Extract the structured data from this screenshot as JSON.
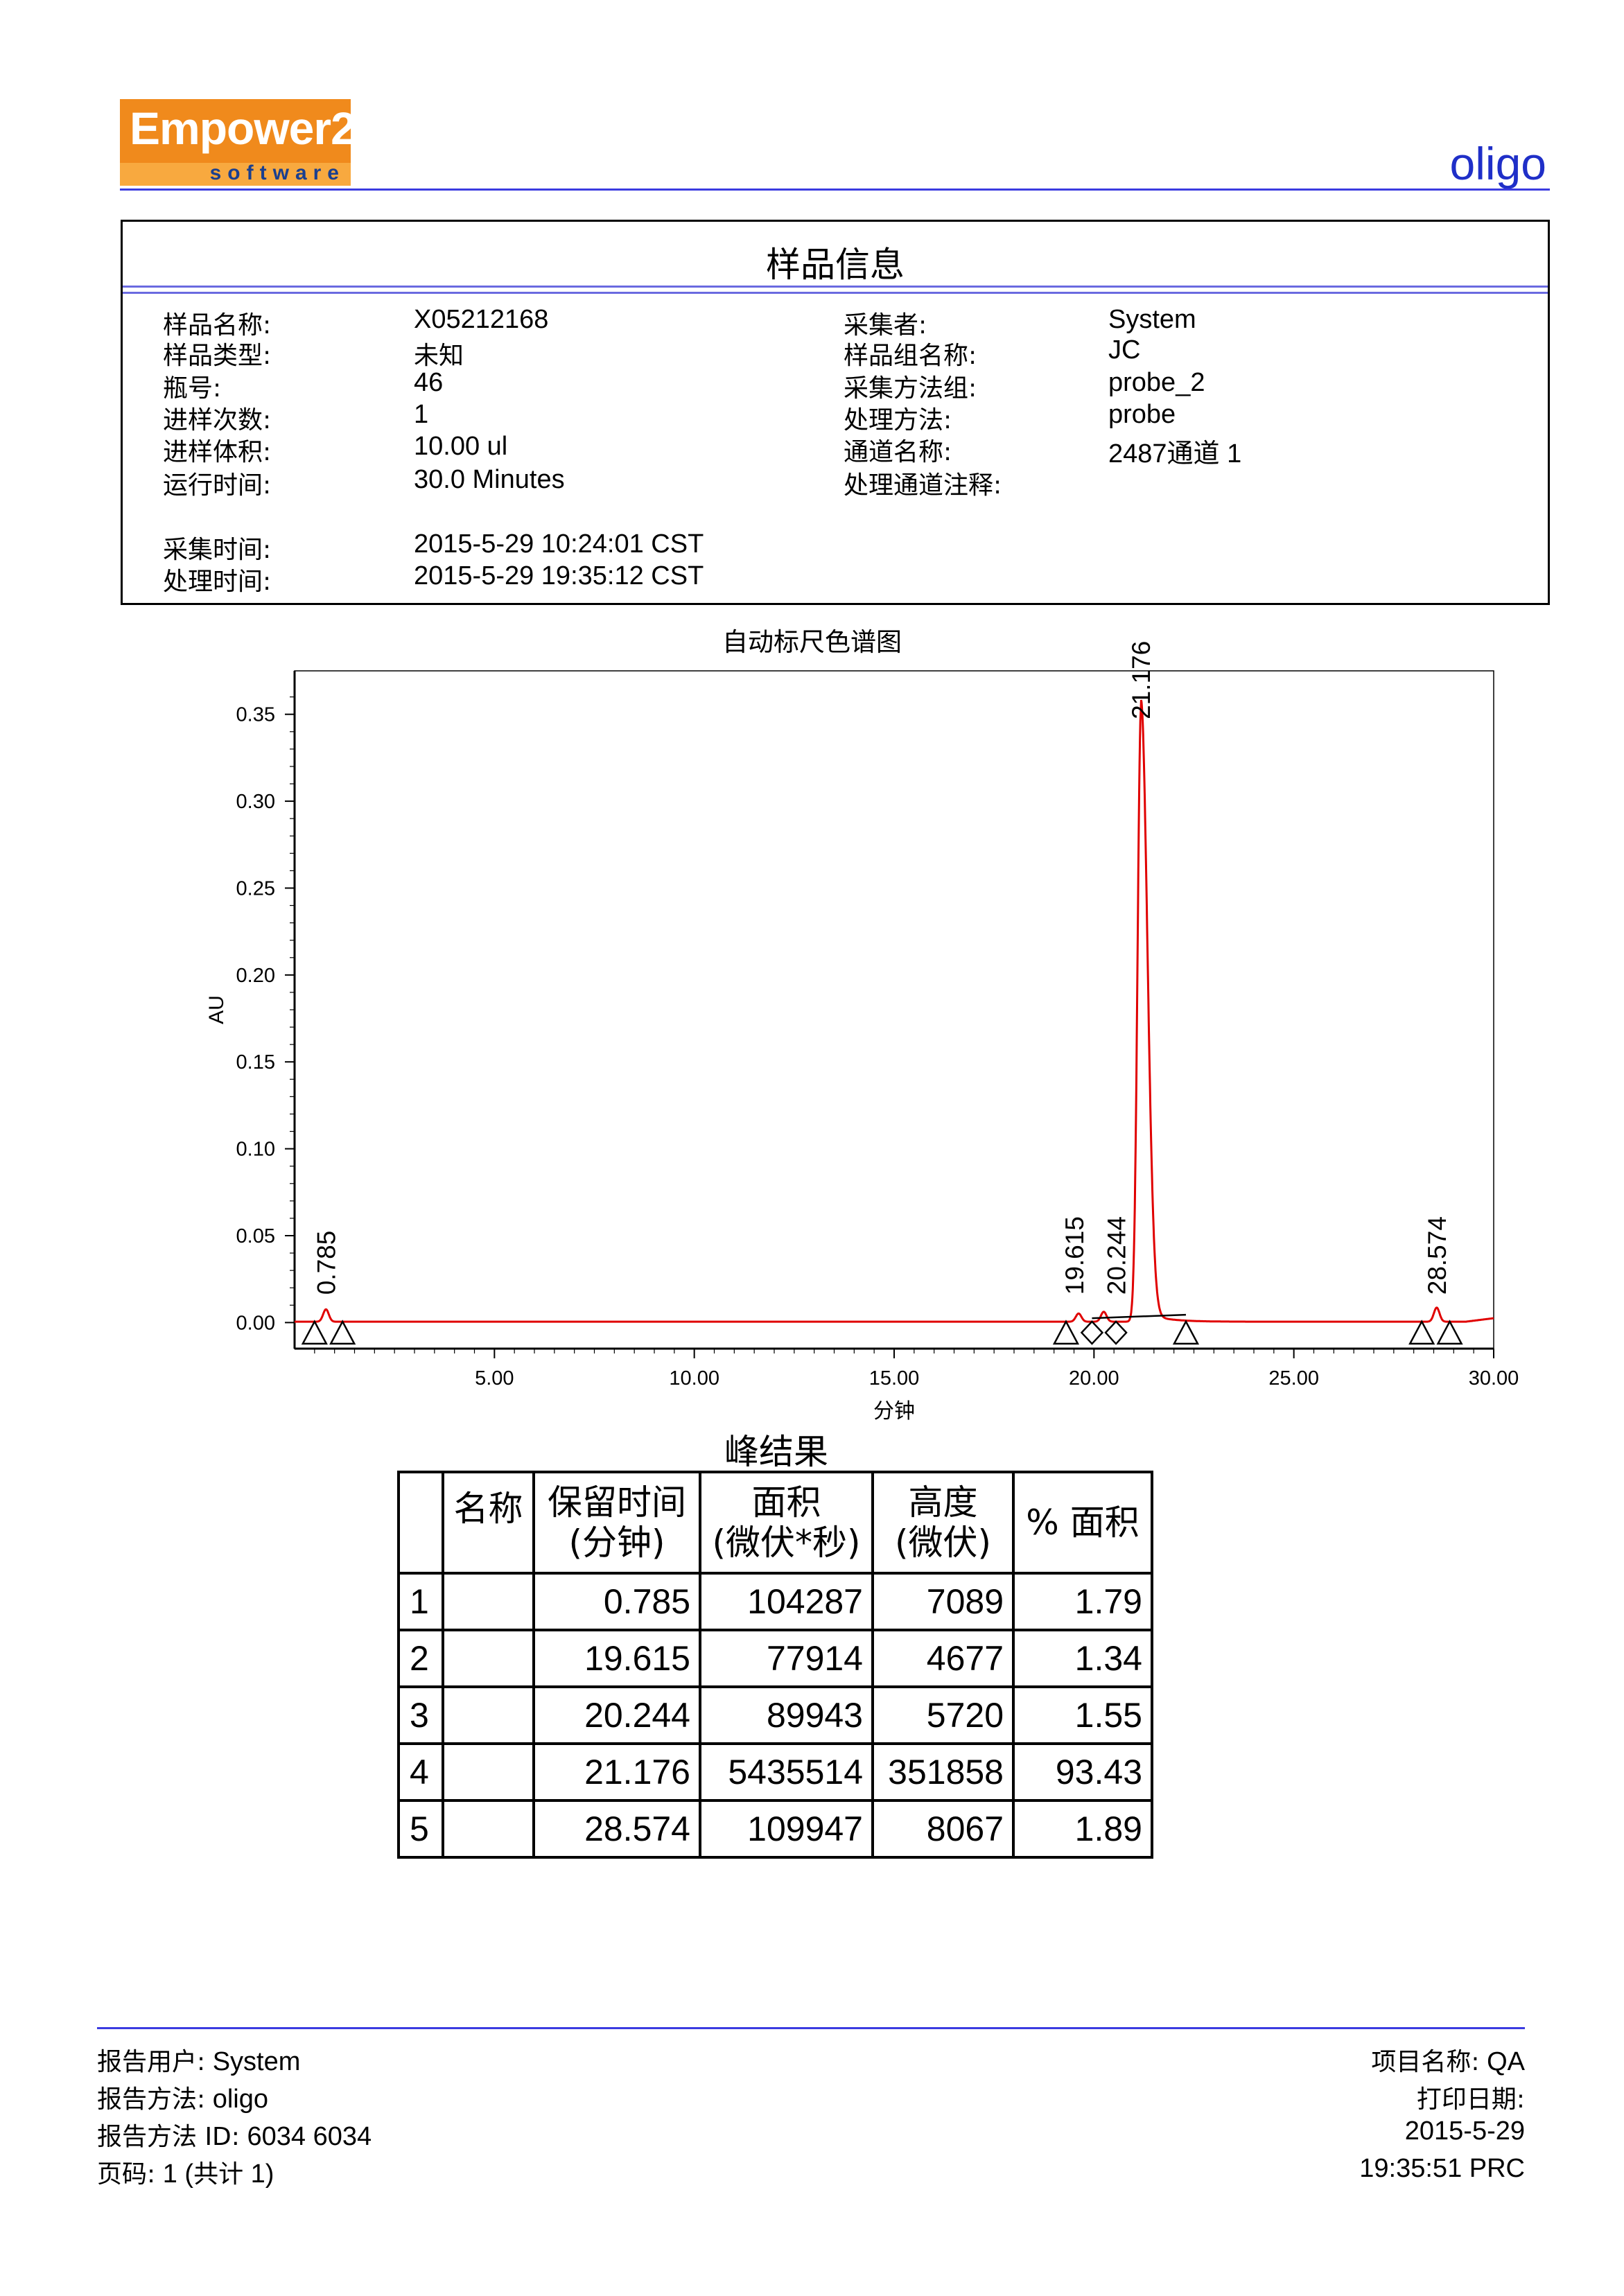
{
  "header": {
    "logo_text": "Empower2",
    "logo_sub": "software",
    "report_name": "oligo"
  },
  "sample_info": {
    "title": "样品信息",
    "left": [
      {
        "label": "样品名称:",
        "value": "X05212168"
      },
      {
        "label": "样品类型:",
        "value": "未知"
      },
      {
        "label": "瓶号:",
        "value": "46"
      },
      {
        "label": "进样次数:",
        "value": "1"
      },
      {
        "label": "进样体积:",
        "value": "10.00 ul"
      },
      {
        "label": "运行时间:",
        "value": "30.0 Minutes"
      },
      {
        "label": "采集时间:",
        "value": "2015-5-29 10:24:01 CST"
      },
      {
        "label": "处理时间:",
        "value": "2015-5-29 19:35:12 CST"
      }
    ],
    "right": [
      {
        "label": "采集者:",
        "value": "System"
      },
      {
        "label": "样品组名称:",
        "value": "JC"
      },
      {
        "label": "采集方法组:",
        "value": "probe_2"
      },
      {
        "label": "处理方法:",
        "value": "probe"
      },
      {
        "label": "通道名称:",
        "value": "2487通道 1"
      },
      {
        "label": "处理通道注释:",
        "value": ""
      }
    ]
  },
  "chart_data": {
    "type": "line",
    "title": "自动标尺色谱图",
    "xlabel": "分钟",
    "ylabel": "AU",
    "xlim": [
      0.0,
      30.0
    ],
    "ylim": [
      -0.015,
      0.375
    ],
    "xticks": [
      "5.00",
      "10.00",
      "15.00",
      "20.00",
      "25.00",
      "30.00"
    ],
    "yticks": [
      "0.00",
      "0.05",
      "0.10",
      "0.15",
      "0.20",
      "0.25",
      "0.30",
      "0.35"
    ],
    "color": "#e00000",
    "peaks": [
      {
        "rt": 0.785,
        "label": "0.785",
        "height": 0.0071
      },
      {
        "rt": 19.615,
        "label": "19.615",
        "height": 0.0047
      },
      {
        "rt": 20.244,
        "label": "20.244",
        "height": 0.0057
      },
      {
        "rt": 21.176,
        "label": "21.176",
        "height": 0.3519
      },
      {
        "rt": 28.574,
        "label": "28.574",
        "height": 0.0081
      }
    ],
    "baseline_markers": [
      {
        "x": 0.5,
        "shape": "triangle"
      },
      {
        "x": 1.2,
        "shape": "triangle"
      },
      {
        "x": 19.3,
        "shape": "triangle"
      },
      {
        "x": 19.95,
        "shape": "diamond"
      },
      {
        "x": 20.55,
        "shape": "diamond"
      },
      {
        "x": 22.3,
        "shape": "triangle"
      },
      {
        "x": 28.2,
        "shape": "triangle"
      },
      {
        "x": 28.9,
        "shape": "triangle"
      }
    ]
  },
  "peak_results": {
    "title": "峰结果",
    "headers": [
      "名称",
      "保留时间\n(分钟)",
      "面积\n(微伏*秒)",
      "高度\n(微伏)",
      "% 面积"
    ],
    "rows": [
      {
        "idx": "1",
        "name": "",
        "rt": "0.785",
        "area": "104287",
        "height": "7089",
        "pct": "1.79"
      },
      {
        "idx": "2",
        "name": "",
        "rt": "19.615",
        "area": "77914",
        "height": "4677",
        "pct": "1.34"
      },
      {
        "idx": "3",
        "name": "",
        "rt": "20.244",
        "area": "89943",
        "height": "5720",
        "pct": "1.55"
      },
      {
        "idx": "4",
        "name": "",
        "rt": "21.176",
        "area": "5435514",
        "height": "351858",
        "pct": "93.43"
      },
      {
        "idx": "5",
        "name": "",
        "rt": "28.574",
        "area": "109947",
        "height": "8067",
        "pct": "1.89"
      }
    ]
  },
  "footer": {
    "report_user_label": "报告用户:",
    "report_user": "System",
    "report_method_label": "报告方法:",
    "report_method": "oligo",
    "report_method_id_label": "报告方法 ID:",
    "report_method_id": "6034 6034",
    "page_label": "页码:",
    "page_value": "1 (",
    "page_total_label": "共计",
    "page_total": " 1)",
    "project_label": "项目名称:",
    "project": "QA",
    "print_date_label": "打印日期:",
    "print_date": "2015-5-29",
    "print_time": "19:35:51 PRC"
  }
}
